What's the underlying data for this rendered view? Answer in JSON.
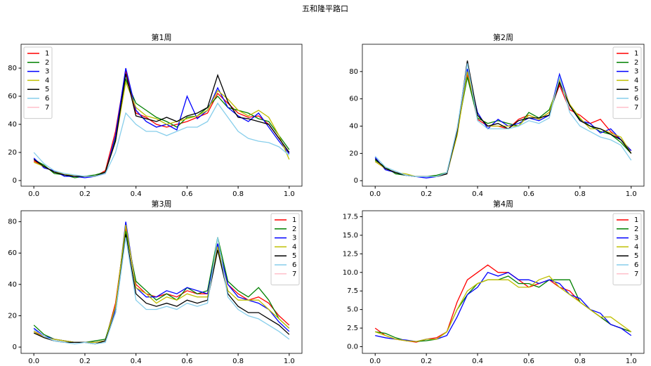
{
  "title": "五和隆平路口",
  "chart_data": [
    {
      "type": "line",
      "title": "第1周",
      "legend": "upper left",
      "x": [
        0,
        0.04,
        0.08,
        0.12,
        0.16,
        0.2,
        0.24,
        0.28,
        0.32,
        0.36,
        0.4,
        0.44,
        0.48,
        0.52,
        0.56,
        0.6,
        0.64,
        0.68,
        0.72,
        0.76,
        0.8,
        0.84,
        0.88,
        0.92,
        0.96,
        1.0
      ],
      "xlim": [
        -0.05,
        1.05
      ],
      "xticks": [
        {
          "value": 0,
          "label": "0.0"
        },
        0.2,
        0.4,
        0.6,
        0.8,
        {
          "value": 1,
          "label": "1.0"
        }
      ],
      "ylim": [
        -4,
        97
      ],
      "yticks": [
        0,
        20,
        40,
        60,
        80
      ],
      "series": [
        {
          "name": "1",
          "color": "#ff0000",
          "values": [
            14,
            10,
            6,
            4,
            3,
            3,
            3,
            7,
            35,
            78,
            48,
            45,
            40,
            38,
            40,
            42,
            45,
            48,
            62,
            55,
            48,
            45,
            46,
            40,
            30,
            20
          ]
        },
        {
          "name": "2",
          "color": "#008000",
          "values": [
            15,
            11,
            5,
            4,
            2,
            3,
            4,
            6,
            30,
            72,
            55,
            50,
            45,
            42,
            38,
            45,
            46,
            52,
            60,
            52,
            50,
            48,
            44,
            42,
            32,
            22
          ]
        },
        {
          "name": "3",
          "color": "#0000ff",
          "values": [
            16,
            9,
            7,
            3,
            3,
            2,
            3,
            5,
            32,
            80,
            50,
            42,
            38,
            40,
            36,
            60,
            44,
            50,
            66,
            52,
            46,
            42,
            48,
            38,
            28,
            19
          ]
        },
        {
          "name": "4",
          "color": "#bfbf00",
          "values": [
            13,
            10,
            6,
            5,
            3,
            3,
            3,
            6,
            28,
            70,
            52,
            46,
            44,
            40,
            42,
            44,
            46,
            50,
            64,
            58,
            50,
            46,
            50,
            45,
            32,
            15
          ]
        },
        {
          "name": "5",
          "color": "#000000",
          "values": [
            15,
            10,
            6,
            4,
            3,
            3,
            3,
            6,
            28,
            76,
            46,
            44,
            42,
            45,
            42,
            46,
            48,
            52,
            75,
            56,
            45,
            44,
            42,
            40,
            30,
            20
          ]
        },
        {
          "name": "6",
          "color": "#87ceeb",
          "values": [
            20,
            12,
            7,
            5,
            4,
            3,
            3,
            5,
            20,
            48,
            40,
            35,
            35,
            32,
            35,
            38,
            38,
            42,
            55,
            45,
            35,
            30,
            28,
            27,
            24,
            18
          ]
        },
        {
          "name": "7",
          "color": "#ffc0cb",
          "values": [
            null,
            null,
            null,
            null,
            null,
            null,
            null,
            null,
            null,
            null,
            null,
            null,
            null,
            null,
            null,
            null,
            null,
            null,
            null,
            null,
            null,
            null,
            null,
            null,
            null,
            null
          ]
        }
      ]
    },
    {
      "type": "line",
      "title": "第2周",
      "legend": "upper right",
      "x": [
        0,
        0.04,
        0.08,
        0.12,
        0.16,
        0.2,
        0.24,
        0.28,
        0.32,
        0.36,
        0.4,
        0.44,
        0.48,
        0.52,
        0.56,
        0.6,
        0.64,
        0.68,
        0.72,
        0.76,
        0.8,
        0.84,
        0.88,
        0.92,
        0.96,
        1.0
      ],
      "xlim": [
        -0.05,
        1.05
      ],
      "xticks": [
        {
          "value": 0,
          "label": "0.0"
        },
        0.2,
        0.4,
        0.6,
        0.8,
        {
          "value": 1,
          "label": "1.0"
        }
      ],
      "ylim": [
        -4,
        100
      ],
      "yticks": [
        0,
        20,
        40,
        60,
        80
      ],
      "series": [
        {
          "name": "1",
          "color": "#ff0000",
          "values": [
            14,
            9,
            6,
            4,
            3,
            3,
            3,
            5,
            38,
            78,
            45,
            40,
            40,
            38,
            45,
            48,
            45,
            50,
            70,
            52,
            48,
            42,
            45,
            36,
            30,
            22
          ]
        },
        {
          "name": "2",
          "color": "#008000",
          "values": [
            15,
            10,
            5,
            4,
            3,
            3,
            4,
            6,
            36,
            76,
            46,
            42,
            44,
            42,
            40,
            50,
            46,
            52,
            72,
            55,
            45,
            40,
            36,
            34,
            28,
            20
          ]
        },
        {
          "name": "3",
          "color": "#0000ff",
          "values": [
            17,
            8,
            6,
            4,
            3,
            2,
            3,
            5,
            34,
            82,
            50,
            38,
            45,
            40,
            42,
            46,
            44,
            48,
            78,
            55,
            44,
            42,
            35,
            38,
            30,
            22
          ]
        },
        {
          "name": "4",
          "color": "#bfbf00",
          "values": [
            14,
            9,
            6,
            5,
            3,
            3,
            3,
            5,
            33,
            80,
            48,
            40,
            40,
            40,
            40,
            48,
            45,
            50,
            74,
            56,
            46,
            38,
            38,
            35,
            32,
            20
          ]
        },
        {
          "name": "5",
          "color": "#000000",
          "values": [
            16,
            9,
            6,
            4,
            3,
            3,
            3,
            5,
            36,
            88,
            48,
            40,
            42,
            38,
            44,
            46,
            46,
            48,
            72,
            55,
            44,
            40,
            38,
            34,
            30,
            20
          ]
        },
        {
          "name": "6",
          "color": "#87ceeb",
          "values": [
            18,
            10,
            7,
            4,
            3,
            3,
            3,
            6,
            38,
            86,
            44,
            38,
            38,
            38,
            40,
            44,
            42,
            46,
            76,
            50,
            40,
            36,
            32,
            30,
            26,
            15
          ]
        },
        {
          "name": "7",
          "color": "#ffc0cb",
          "values": [
            null,
            null,
            null,
            null,
            null,
            null,
            null,
            null,
            null,
            null,
            null,
            null,
            null,
            null,
            null,
            null,
            null,
            null,
            null,
            null,
            null,
            null,
            null,
            null,
            null,
            null
          ]
        }
      ]
    },
    {
      "type": "line",
      "title": "第3周",
      "legend": "upper right",
      "x": [
        0,
        0.04,
        0.08,
        0.12,
        0.16,
        0.2,
        0.24,
        0.28,
        0.32,
        0.36,
        0.4,
        0.44,
        0.48,
        0.52,
        0.56,
        0.6,
        0.64,
        0.68,
        0.72,
        0.76,
        0.8,
        0.84,
        0.88,
        0.92,
        0.96,
        1.0
      ],
      "xlim": [
        -0.05,
        1.05
      ],
      "xticks": [
        {
          "value": 0,
          "label": "0.0"
        },
        0.2,
        0.4,
        0.6,
        0.8,
        {
          "value": 1,
          "label": "1.0"
        }
      ],
      "ylim": [
        -4,
        87
      ],
      "yticks": [
        0,
        20,
        40,
        60,
        80
      ],
      "series": [
        {
          "name": "1",
          "color": "#ff0000",
          "values": [
            10,
            7,
            5,
            4,
            3,
            3,
            3,
            4,
            28,
            76,
            40,
            34,
            32,
            34,
            32,
            36,
            34,
            34,
            66,
            40,
            34,
            30,
            32,
            28,
            20,
            14
          ]
        },
        {
          "name": "2",
          "color": "#008000",
          "values": [
            14,
            8,
            5,
            4,
            3,
            3,
            4,
            5,
            26,
            74,
            42,
            36,
            30,
            34,
            30,
            38,
            34,
            36,
            70,
            42,
            36,
            32,
            38,
            30,
            18,
            12
          ]
        },
        {
          "name": "3",
          "color": "#0000ff",
          "values": [
            12,
            7,
            5,
            4,
            3,
            3,
            3,
            4,
            24,
            80,
            38,
            32,
            32,
            36,
            34,
            38,
            36,
            34,
            66,
            40,
            32,
            30,
            28,
            24,
            16,
            10
          ]
        },
        {
          "name": "4",
          "color": "#bfbf00",
          "values": [
            10,
            6,
            5,
            4,
            3,
            3,
            3,
            4,
            26,
            78,
            38,
            34,
            28,
            32,
            30,
            34,
            32,
            32,
            64,
            36,
            30,
            30,
            30,
            24,
            18,
            12
          ]
        },
        {
          "name": "5",
          "color": "#000000",
          "values": [
            9,
            6,
            4,
            3,
            3,
            3,
            2,
            4,
            22,
            72,
            34,
            28,
            26,
            28,
            26,
            30,
            28,
            30,
            62,
            34,
            26,
            22,
            22,
            18,
            14,
            8
          ]
        },
        {
          "name": "6",
          "color": "#87ceeb",
          "values": [
            11,
            7,
            4,
            3,
            2,
            3,
            2,
            3,
            22,
            70,
            30,
            24,
            24,
            26,
            24,
            28,
            26,
            28,
            70,
            32,
            24,
            20,
            18,
            14,
            10,
            5
          ]
        },
        {
          "name": "7",
          "color": "#ffc0cb",
          "values": [
            null,
            null,
            null,
            null,
            null,
            null,
            null,
            null,
            null,
            null,
            null,
            null,
            null,
            null,
            null,
            null,
            null,
            null,
            null,
            null,
            null,
            null,
            null,
            null,
            null,
            null
          ]
        }
      ]
    },
    {
      "type": "line",
      "title": "第4周",
      "legend": "upper right",
      "x": [
        0,
        0.04,
        0.08,
        0.12,
        0.16,
        0.2,
        0.24,
        0.28,
        0.32,
        0.36,
        0.4,
        0.44,
        0.48,
        0.52,
        0.56,
        0.6,
        0.64,
        0.68,
        0.72,
        0.76,
        0.8,
        0.84,
        0.88,
        0.92,
        0.96,
        1.0
      ],
      "xlim": [
        -0.05,
        1.05
      ],
      "xticks": [
        {
          "value": 0,
          "label": "0.0"
        },
        0.2,
        0.4,
        0.6,
        0.8,
        {
          "value": 1,
          "label": "1.0"
        }
      ],
      "ylim": [
        -0.9,
        18.3
      ],
      "yticks": [
        {
          "value": 0,
          "label": "0.0"
        },
        2.5,
        {
          "value": 5,
          "label": "5.0"
        },
        7.5,
        {
          "value": 10,
          "label": "10.0"
        },
        12.5,
        {
          "value": 15,
          "label": "15.0"
        },
        17.5
      ],
      "series": [
        {
          "name": "1",
          "color": "#ff0000",
          "values": [
            2.5,
            1.5,
            1,
            0.8,
            0.6,
            1,
            1.2,
            2,
            6,
            9,
            10,
            11,
            10,
            10,
            9,
            8,
            8.5,
            9,
            8,
            7.5,
            6,
            5,
            4,
            3,
            2.5,
            2
          ]
        },
        {
          "name": "2",
          "color": "#008000",
          "values": [
            2,
            1.8,
            1.2,
            0.8,
            0.7,
            0.8,
            1,
            2,
            5,
            7,
            8.5,
            9,
            9,
            9.5,
            8.5,
            8.5,
            8,
            9,
            9,
            9,
            6,
            5,
            4,
            3,
            2.5,
            2
          ]
        },
        {
          "name": "3",
          "color": "#0000ff",
          "values": [
            1.5,
            1.2,
            1,
            0.9,
            0.7,
            1,
            1,
            1.5,
            4,
            7,
            8,
            10,
            9.5,
            10,
            9,
            9,
            8.5,
            9,
            8.5,
            7,
            6.5,
            5,
            4.5,
            3,
            2.5,
            1.5
          ]
        },
        {
          "name": "4",
          "color": "#bfbf00",
          "values": [
            2,
            1.5,
            1,
            0.8,
            0.7,
            1,
            1,
            2,
            5,
            7.5,
            8.5,
            9,
            9,
            9,
            8,
            8,
            9,
            9.5,
            8,
            7,
            6,
            5,
            4,
            4,
            3,
            2
          ]
        },
        {
          "name": "5",
          "color": "#000000",
          "values": [
            null,
            null,
            null,
            null,
            null,
            null,
            null,
            null,
            null,
            null,
            null,
            null,
            null,
            null,
            null,
            null,
            null,
            null,
            null,
            null,
            null,
            null,
            null,
            null,
            null,
            null
          ]
        },
        {
          "name": "6",
          "color": "#87ceeb",
          "values": [
            null,
            null,
            null,
            null,
            null,
            null,
            null,
            null,
            null,
            null,
            null,
            null,
            null,
            null,
            null,
            null,
            null,
            null,
            null,
            null,
            null,
            null,
            null,
            null,
            null,
            null
          ]
        },
        {
          "name": "7",
          "color": "#ffc0cb",
          "values": [
            null,
            null,
            null,
            null,
            null,
            null,
            null,
            null,
            null,
            null,
            null,
            null,
            null,
            null,
            null,
            null,
            null,
            null,
            null,
            null,
            null,
            null,
            null,
            null,
            null,
            null
          ]
        }
      ]
    }
  ]
}
